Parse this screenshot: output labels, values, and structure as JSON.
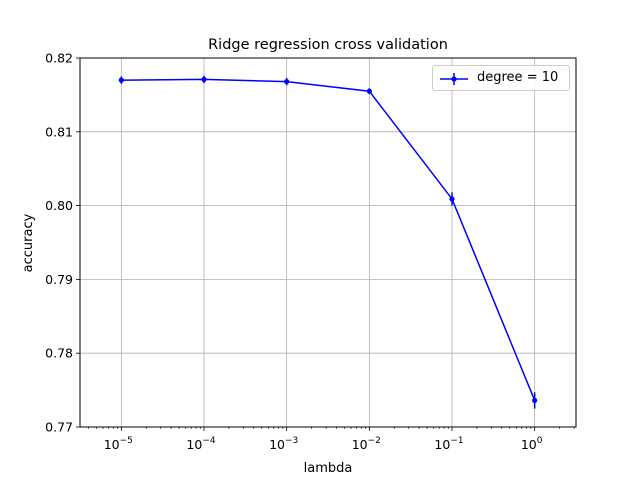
{
  "chart_data": {
    "type": "line",
    "title": "Ridge regression cross validation",
    "xlabel": "lambda",
    "ylabel": "accuracy",
    "x_scale": "log",
    "x": [
      1e-05,
      0.0001,
      0.001,
      0.01,
      0.1,
      1
    ],
    "x_tick_labels": [
      {
        "base": "10",
        "exp": "−5"
      },
      {
        "base": "10",
        "exp": "−4"
      },
      {
        "base": "10",
        "exp": "−3"
      },
      {
        "base": "10",
        "exp": "−2"
      },
      {
        "base": "10",
        "exp": "−1"
      },
      {
        "base": "10",
        "exp": "0"
      }
    ],
    "y_ticks": [
      0.77,
      0.78,
      0.79,
      0.8,
      0.81,
      0.82
    ],
    "y_tick_labels": [
      "0.77",
      "0.78",
      "0.79",
      "0.80",
      "0.81",
      "0.82"
    ],
    "ylim": [
      0.77,
      0.82
    ],
    "grid": true,
    "legend_position": "top-right",
    "series": [
      {
        "name": "degree = 10",
        "color": "#0000ff",
        "values": [
          0.817,
          0.8171,
          0.8168,
          0.8155,
          0.8009,
          0.7736
        ],
        "errors": [
          0.0005,
          0.0005,
          0.0005,
          0.0004,
          0.0009,
          0.0011
        ]
      }
    ]
  }
}
